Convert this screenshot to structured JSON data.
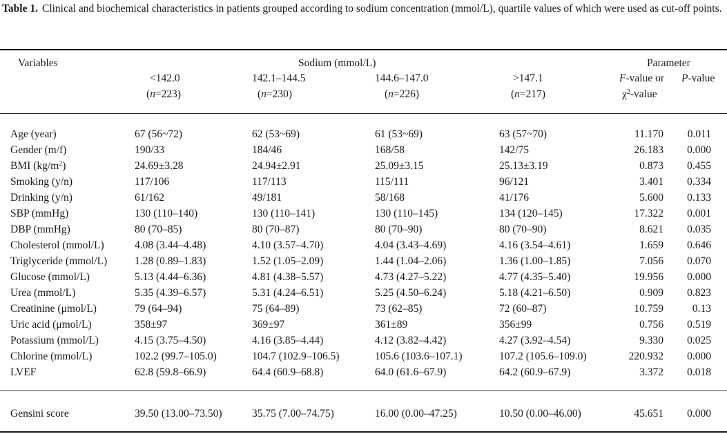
{
  "caption": {
    "label": "Table 1.",
    "text": "Clinical and biochemical characteristics in patients grouped according to sodium concentration (mmol/L), quartile values of which were used as cut-off points."
  },
  "header": {
    "variables": "Variables",
    "sodium_group": "Sodium (mmol/L)",
    "parameter_group": "Parameter",
    "columns": [
      {
        "range": "<142.0",
        "n": "223"
      },
      {
        "range": "142.1–144.5",
        "n": "230"
      },
      {
        "range": "144.6–147.0",
        "n": "226"
      },
      {
        "range": ">147.1",
        "n": "217"
      }
    ],
    "f_value_italic": "F",
    "f_value_rest": "-value or",
    "chi_letter": "χ",
    "chi_sup": "2",
    "chi_rest": "-value",
    "p_value_italic": "P",
    "p_value_rest": "-value",
    "n_label": "n",
    "n_eq": "="
  },
  "rows": [
    {
      "name": "Age (year)",
      "values": [
        "67 (56~72)",
        "62 (53~69)",
        "61 (53~69)",
        "63 (57~70)"
      ],
      "f": "11.170",
      "p": "0.011"
    },
    {
      "name": "Gender (m/f)",
      "values": [
        "190/33",
        "184/46",
        "168/58",
        "142/75"
      ],
      "f": "26.183",
      "p": "0.000"
    },
    {
      "name": "BMI (kg/m",
      "name_sup": "2",
      "name_after": ")",
      "values": [
        "24.69±3.28",
        "24.94±2.91",
        "25.09±3.15",
        "25.13±3.19"
      ],
      "f": "0.873",
      "p": "0.455"
    },
    {
      "name": "Smoking (y/n)",
      "values": [
        "117/106",
        "117/113",
        "115/111",
        "96/121"
      ],
      "f": "3.401",
      "p": "0.334"
    },
    {
      "name": "Drinking (y/n)",
      "values": [
        "61/162",
        "49/181",
        "58/168",
        "41/176"
      ],
      "f": "5.600",
      "p": "0.133"
    },
    {
      "name": "SBP (mmHg)",
      "values": [
        "130 (110–140)",
        "130 (110–141)",
        "130 (110–145)",
        "134 (120–145)"
      ],
      "f": "17.322",
      "p": "0.001"
    },
    {
      "name": "DBP (mmHg)",
      "values": [
        "80 (70–85)",
        "80 (70–87)",
        "80 (70–90)",
        "80 (70–90)"
      ],
      "f": "8.621",
      "p": "0.035"
    },
    {
      "name": "Cholesterol (mmol/L)",
      "values": [
        "4.08 (3.44–4.48)",
        "4.10 (3.57–4.70)",
        "4.04 (3.43–4.69)",
        "4.16 (3.54–4.61)"
      ],
      "f": "1.659",
      "p": "0.646"
    },
    {
      "name": "Triglyceride (mmol/L)",
      "values": [
        "1.28 (0.89–1.83)",
        "1.52 (1.05–2.09)",
        "1.44 (1.04–2.06)",
        "1.36 (1.00–1.85)"
      ],
      "f": "7.056",
      "p": "0.070"
    },
    {
      "name": "Glucose (mmol/L)",
      "values": [
        "5.13 (4.44–6.36)",
        "4.81 (4.38–5.57)",
        "4.73 (4.27–5.22)",
        "4.77 (4.35–5.40)"
      ],
      "f": "19.956",
      "p": "0.000"
    },
    {
      "name": "Urea (mmol/L)",
      "values": [
        "5.35 (4.39–6.57)",
        "5.31 (4.24–6.51)",
        "5.25 (4.50–6.24)",
        "5.18 (4.21–6.50)"
      ],
      "f": "0.909",
      "p": "0.823"
    },
    {
      "name": "Creatinine (μmol/L)",
      "values": [
        "79 (64–94)",
        "75 (64–89)",
        "73 (62–85)",
        "72 (60–87)"
      ],
      "f": "10.759",
      "p": "0.13"
    },
    {
      "name": "Uric acid (μmol/L)",
      "values": [
        "358±97",
        "369±97",
        "361±89",
        "356±99"
      ],
      "f": "0.756",
      "p": "0.519"
    },
    {
      "name": "Potassium (mmol/L)",
      "values": [
        "4.15 (3.75–4.50)",
        "4.16 (3.85–4.44)",
        "4.12 (3.82–4.42)",
        "4.27 (3.92–4.54)"
      ],
      "f": "9.330",
      "p": "0.025"
    },
    {
      "name": "Chlorine (mmol/L)",
      "values": [
        "102.2 (99.7–105.0)",
        "104.7 (102.9–106.5)",
        "105.6 (103.6–107.1)",
        "107.2 (105.6–109.0)"
      ],
      "f": "220.932",
      "p": "0.000"
    },
    {
      "name": "LVEF",
      "values": [
        "62.8 (59.8–66.9)",
        "64.4 (60.9–68.8)",
        "64.0 (61.6–67.9)",
        "64.2 (60.9–67.9)"
      ],
      "f": "3.372",
      "p": "0.018"
    }
  ],
  "gensini": {
    "name": "Gensini score",
    "values": [
      "39.50 (13.00–73.50)",
      "35.75 (7.00–74.75)",
      "16.00 (0.00–47.25)",
      "10.50 (0.00–46.00)"
    ],
    "f": "45.651",
    "p": "0.000"
  }
}
